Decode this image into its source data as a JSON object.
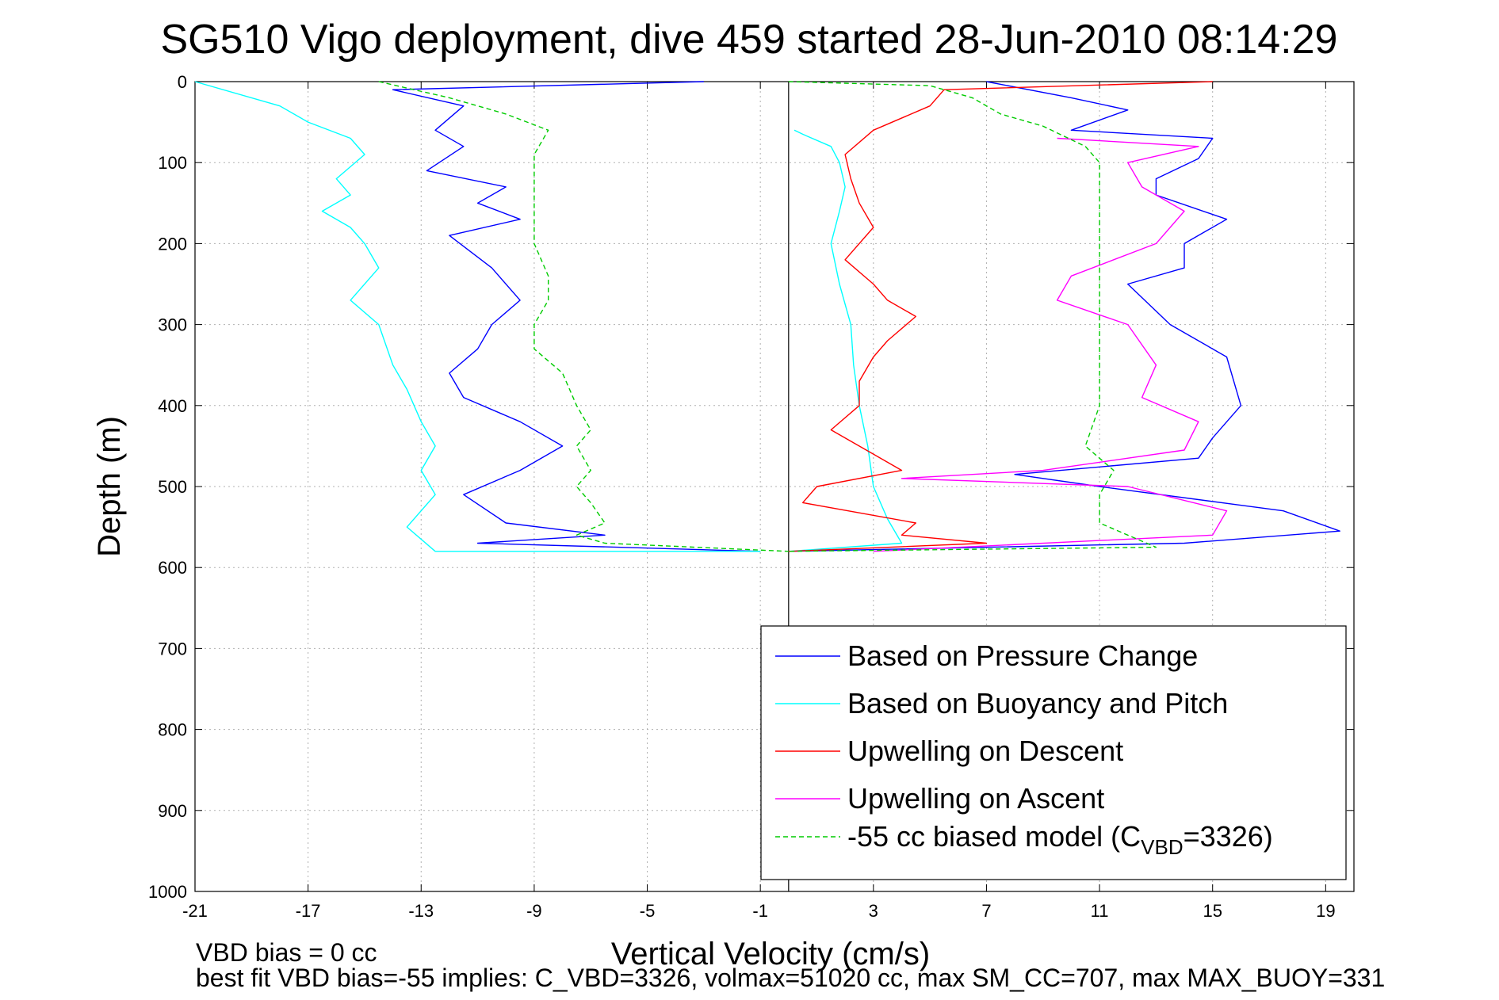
{
  "chart_data": {
    "type": "line",
    "title": "SG510 Vigo deployment, dive 459 started 28-Jun-2010 08:14:29",
    "xlabel": "Vertical Velocity (cm/s)",
    "ylabel": "Depth (m)",
    "xlim": [
      -21,
      20
    ],
    "ylim": [
      0,
      1000
    ],
    "y_reversed": true,
    "grid": true,
    "x_ticks": [
      "-21",
      "-17",
      "-13",
      "-9",
      "-5",
      "-1",
      "3",
      "7",
      "11",
      "15",
      "19"
    ],
    "y_ticks": [
      "0",
      "100",
      "200",
      "300",
      "400",
      "500",
      "600",
      "700",
      "800",
      "900",
      "1000"
    ],
    "zero_line_x": 0,
    "legend_position": "bottom-right",
    "legend": [
      {
        "label": "Based on Pressure Change",
        "color": "#0000ff",
        "dash": false
      },
      {
        "label": "Based on Buoyancy and Pitch",
        "color": "#00ffff",
        "dash": false
      },
      {
        "label": "Upwelling on Descent",
        "color": "#ff0000",
        "dash": false
      },
      {
        "label": "Upwelling on Ascent",
        "color": "#ff00ff",
        "dash": false
      },
      {
        "label_prefix": "-55 cc biased model (C",
        "label_sub": "VBD",
        "label_suffix": "=3326)",
        "color": "#00cc00",
        "dash": true
      }
    ],
    "series": [
      {
        "key": "pressure_down",
        "color": "#0000ff",
        "dash": false,
        "points": [
          [
            -3,
            0
          ],
          [
            -14,
            10
          ],
          [
            -11.5,
            30
          ],
          [
            -12.5,
            60
          ],
          [
            -11.5,
            80
          ],
          [
            -12.8,
            110
          ],
          [
            -10,
            130
          ],
          [
            -11,
            150
          ],
          [
            -9.5,
            170
          ],
          [
            -12,
            190
          ],
          [
            -10.5,
            230
          ],
          [
            -9.5,
            270
          ],
          [
            -10.5,
            300
          ],
          [
            -11,
            330
          ],
          [
            -12,
            360
          ],
          [
            -11.5,
            390
          ],
          [
            -9.5,
            420
          ],
          [
            -8,
            450
          ],
          [
            -9.5,
            480
          ],
          [
            -11.5,
            510
          ],
          [
            -10,
            545
          ],
          [
            -6.5,
            560
          ],
          [
            -11,
            570
          ],
          [
            -1,
            580
          ]
        ]
      },
      {
        "key": "pressure_up",
        "color": "#0000ff",
        "dash": false,
        "points": [
          [
            0,
            580
          ],
          [
            14,
            570
          ],
          [
            19.5,
            555
          ],
          [
            17.5,
            530
          ],
          [
            11,
            500
          ],
          [
            8,
            485
          ],
          [
            14.5,
            465
          ],
          [
            15,
            440
          ],
          [
            16,
            400
          ],
          [
            15.5,
            340
          ],
          [
            13.5,
            300
          ],
          [
            12,
            250
          ],
          [
            14,
            230
          ],
          [
            14,
            200
          ],
          [
            15.5,
            170
          ],
          [
            13,
            140
          ],
          [
            13,
            120
          ],
          [
            14.5,
            95
          ],
          [
            15,
            70
          ],
          [
            10,
            60
          ],
          [
            12,
            35
          ],
          [
            10,
            20
          ],
          [
            7,
            0
          ]
        ]
      },
      {
        "key": "buoyancy_down",
        "color": "#00ffff",
        "dash": false,
        "points": [
          [
            -21,
            0
          ],
          [
            -18,
            30
          ],
          [
            -17,
            50
          ],
          [
            -15.5,
            70
          ],
          [
            -15,
            90
          ],
          [
            -16,
            120
          ],
          [
            -15.5,
            140
          ],
          [
            -16.5,
            160
          ],
          [
            -15.5,
            180
          ],
          [
            -15,
            200
          ],
          [
            -14.5,
            230
          ],
          [
            -15.5,
            270
          ],
          [
            -14.5,
            300
          ],
          [
            -14,
            350
          ],
          [
            -13.5,
            380
          ],
          [
            -13,
            420
          ],
          [
            -12.5,
            450
          ],
          [
            -13,
            480
          ],
          [
            -12.5,
            510
          ],
          [
            -13.5,
            550
          ],
          [
            -12.5,
            580
          ],
          [
            -1,
            580
          ]
        ]
      },
      {
        "key": "buoyancy_up",
        "color": "#00ffff",
        "dash": false,
        "points": [
          [
            0,
            580
          ],
          [
            4,
            570
          ],
          [
            3.5,
            540
          ],
          [
            3,
            500
          ],
          [
            2.8,
            450
          ],
          [
            2.5,
            400
          ],
          [
            2.3,
            350
          ],
          [
            2.2,
            300
          ],
          [
            1.8,
            250
          ],
          [
            1.5,
            200
          ],
          [
            1.8,
            160
          ],
          [
            2,
            130
          ],
          [
            1.8,
            100
          ],
          [
            1.5,
            80
          ],
          [
            0.5,
            65
          ],
          [
            0.2,
            60
          ]
        ]
      },
      {
        "key": "upwelling_descent",
        "color": "#ff0000",
        "dash": false,
        "points": [
          [
            0,
            580
          ],
          [
            7,
            570
          ],
          [
            4,
            560
          ],
          [
            4.5,
            545
          ],
          [
            0.5,
            520
          ],
          [
            1,
            500
          ],
          [
            4,
            480
          ],
          [
            3,
            460
          ],
          [
            1.5,
            430
          ],
          [
            2.5,
            400
          ],
          [
            2.5,
            370
          ],
          [
            3,
            340
          ],
          [
            3.5,
            320
          ],
          [
            4.5,
            290
          ],
          [
            3.5,
            270
          ],
          [
            3,
            250
          ],
          [
            2,
            220
          ],
          [
            3,
            180
          ],
          [
            2.5,
            150
          ],
          [
            2.2,
            120
          ],
          [
            2,
            90
          ],
          [
            3,
            60
          ],
          [
            5,
            30
          ],
          [
            5.5,
            10
          ],
          [
            15,
            0
          ]
        ]
      },
      {
        "key": "upwelling_ascent",
        "color": "#ff00ff",
        "dash": false,
        "points": [
          [
            3,
            580
          ],
          [
            15,
            560
          ],
          [
            15.5,
            530
          ],
          [
            12,
            500
          ],
          [
            4,
            490
          ],
          [
            9,
            480
          ],
          [
            14,
            455
          ],
          [
            14.5,
            420
          ],
          [
            12.5,
            390
          ],
          [
            13,
            350
          ],
          [
            12,
            300
          ],
          [
            9.5,
            270
          ],
          [
            10,
            240
          ],
          [
            11.5,
            220
          ],
          [
            13,
            200
          ],
          [
            14,
            160
          ],
          [
            12.5,
            130
          ],
          [
            12,
            100
          ],
          [
            14.5,
            80
          ],
          [
            9.5,
            70
          ]
        ]
      },
      {
        "key": "model_down",
        "color": "#00cc00",
        "dash": true,
        "points": [
          [
            -14.5,
            0
          ],
          [
            -12,
            20
          ],
          [
            -10,
            40
          ],
          [
            -8.5,
            60
          ],
          [
            -9,
            90
          ],
          [
            -9,
            130
          ],
          [
            -9,
            170
          ],
          [
            -9,
            200
          ],
          [
            -8.5,
            240
          ],
          [
            -8.5,
            270
          ],
          [
            -9,
            300
          ],
          [
            -9,
            330
          ],
          [
            -8,
            360
          ],
          [
            -7.5,
            400
          ],
          [
            -7,
            430
          ],
          [
            -7.5,
            450
          ],
          [
            -7,
            480
          ],
          [
            -7.5,
            500
          ],
          [
            -7,
            520
          ],
          [
            -6.5,
            545
          ],
          [
            -7.5,
            560
          ],
          [
            -6.5,
            570
          ],
          [
            0,
            580
          ]
        ]
      },
      {
        "key": "model_up",
        "color": "#00cc00",
        "dash": true,
        "points": [
          [
            0,
            0
          ],
          [
            5,
            5
          ],
          [
            6.5,
            20
          ],
          [
            7.5,
            40
          ],
          [
            9,
            55
          ],
          [
            10.5,
            80
          ],
          [
            11,
            100
          ],
          [
            11,
            150
          ],
          [
            11,
            200
          ],
          [
            11,
            250
          ],
          [
            11,
            300
          ],
          [
            11,
            350
          ],
          [
            11,
            400
          ],
          [
            10.5,
            450
          ],
          [
            11.5,
            480
          ],
          [
            11,
            510
          ],
          [
            11,
            545
          ],
          [
            12,
            560
          ],
          [
            13,
            575
          ],
          [
            0,
            580
          ]
        ]
      }
    ]
  },
  "footer": {
    "line1": "VBD bias = 0 cc",
    "line2": "best fit VBD bias=-55 implies: C_VBD=3326, volmax=51020 cc, max SM_CC=707, max MAX_BUOY=331"
  }
}
